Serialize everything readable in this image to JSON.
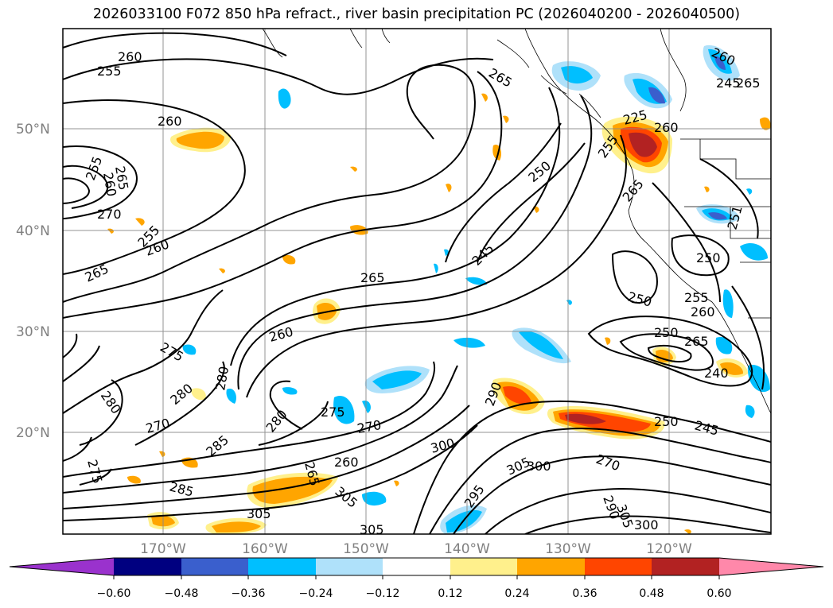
{
  "title": "2026033100 F072 850 hPa refract., river basin precipitation PC (2026040200 - 2026040500)",
  "map": {
    "lat_labels": [
      "50°N",
      "40°N",
      "30°N",
      "20°N"
    ],
    "lon_labels": [
      "170°W",
      "160°W",
      "150°W",
      "140°W",
      "130°W",
      "120°W"
    ],
    "contour_labels": [
      "260",
      "255",
      "260",
      "265",
      "260",
      "255",
      "270",
      "255",
      "260",
      "265",
      "265",
      "260",
      "275",
      "280",
      "280",
      "280",
      "270",
      "285",
      "275",
      "285",
      "280",
      "305",
      "265",
      "305",
      "270",
      "275",
      "260",
      "305",
      "300",
      "290",
      "305",
      "300",
      "295",
      "305",
      "300",
      "290",
      "270",
      "250",
      "245",
      "250",
      "265",
      "260",
      "255",
      "225",
      "260",
      "265",
      "250",
      "265",
      "250",
      "245",
      "240",
      "250",
      "245",
      "265",
      "260",
      "251",
      "255"
    ]
  },
  "colorbar": {
    "tick_labels": [
      "−0.60",
      "−0.48",
      "−0.36",
      "−0.24",
      "−0.12",
      "0.12",
      "0.24",
      "0.36",
      "0.48",
      "0.60"
    ],
    "colors": [
      "#9a32cd",
      "#000080",
      "#3a5fcd",
      "#00bfff",
      "#afe1fa",
      "#ffffff",
      "#fff08c",
      "#ffa500",
      "#ff4500",
      "#b22222",
      "#ff88aa"
    ]
  }
}
